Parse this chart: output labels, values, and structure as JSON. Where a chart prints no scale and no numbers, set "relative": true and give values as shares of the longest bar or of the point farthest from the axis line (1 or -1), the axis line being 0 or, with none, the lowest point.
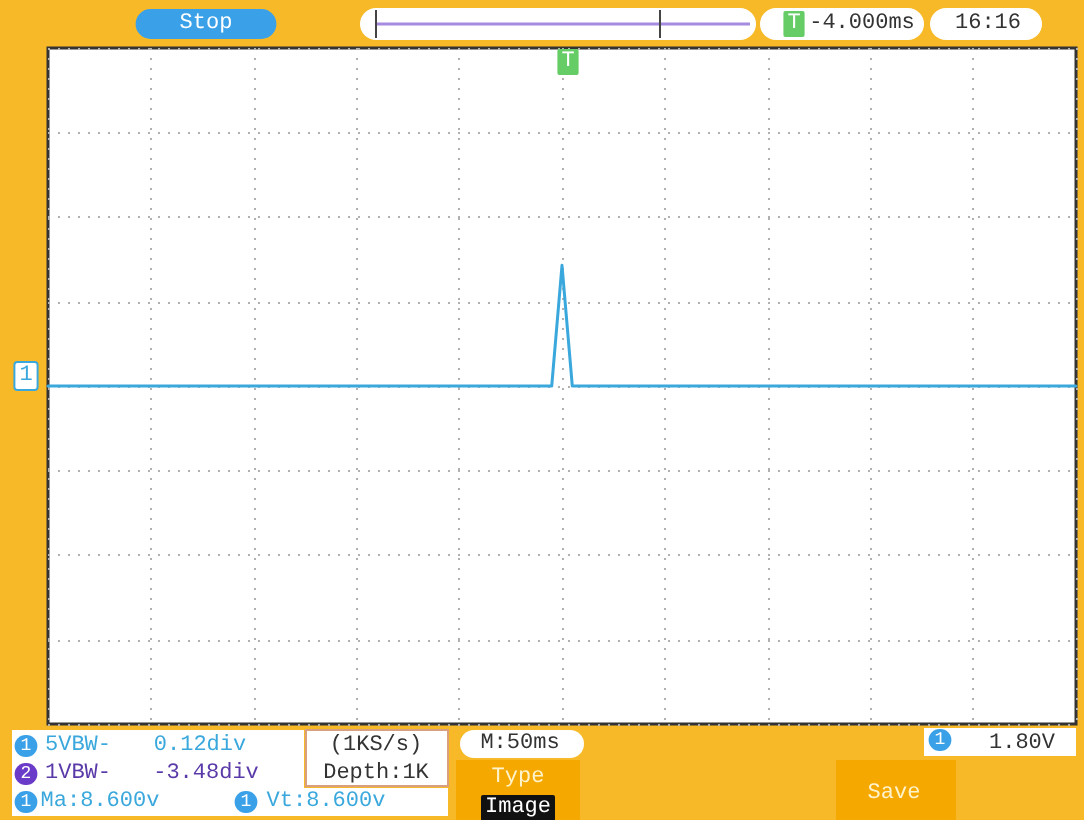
{
  "chart_data": {
    "type": "line",
    "relative": true,
    "grid": true,
    "line_style": "solid",
    "categories": [
      null,
      null,
      null,
      null,
      null,
      null,
      null,
      null,
      null,
      null,
      null,
      null,
      null,
      null,
      null,
      null,
      null,
      null,
      null,
      null,
      null,
      null,
      null,
      null,
      null,
      null,
      null,
      null,
      null,
      null,
      null,
      null,
      null,
      null,
      null,
      null,
      null,
      null,
      null,
      null,
      null,
      null,
      null,
      null,
      null,
      null,
      null,
      null,
      null,
      null,
      null,
      null,
      null,
      null,
      null,
      null,
      null,
      null,
      null,
      null,
      null,
      null,
      null,
      null,
      null,
      null,
      null,
      null,
      null,
      null,
      null,
      null,
      null,
      null,
      null,
      null,
      null,
      null,
      null,
      null,
      null,
      null,
      null,
      null,
      null,
      null,
      null,
      null,
      null,
      null,
      null,
      null,
      null,
      null,
      null,
      null,
      null,
      null,
      null,
      null,
      null
    ],
    "series": [
      {
        "color": "#3aa8dc",
        "values": [
          0,
          0,
          0,
          0,
          0,
          0,
          0,
          0,
          0,
          0,
          0,
          0,
          0,
          0,
          0,
          0,
          0,
          0,
          0,
          0,
          0,
          0,
          0,
          0,
          0,
          0,
          0,
          0,
          0,
          0,
          0,
          0,
          0,
          0,
          0,
          0,
          0,
          0,
          0,
          0,
          0,
          0,
          0,
          0,
          0,
          0,
          0,
          0,
          0,
          0,
          1,
          0,
          0,
          0,
          0,
          0,
          0,
          0,
          0,
          0,
          0,
          0,
          0,
          0,
          0,
          0,
          0,
          0,
          0,
          0,
          0,
          0,
          0,
          0,
          0,
          0,
          0,
          0,
          0,
          0,
          0,
          0,
          0,
          0,
          0,
          0,
          0,
          0,
          0,
          0,
          0,
          0,
          0,
          0,
          0,
          0,
          0,
          0,
          0,
          0,
          0
        ]
      }
    ],
    "annotations": [
      "Stop",
      "-4.000ms",
      "16:16",
      "T",
      "1",
      "1",
      "5VBW-",
      "0.12div",
      "2",
      "1VBW-",
      "-3.48div",
      "1",
      "Ma:8.600v",
      "1",
      "Vt:8.600v",
      "(1KS/s)",
      "Depth:1K",
      "M:50ms",
      "1",
      "1.80V",
      "Type",
      "Image",
      "Save",
      "T"
    ]
  }
}
